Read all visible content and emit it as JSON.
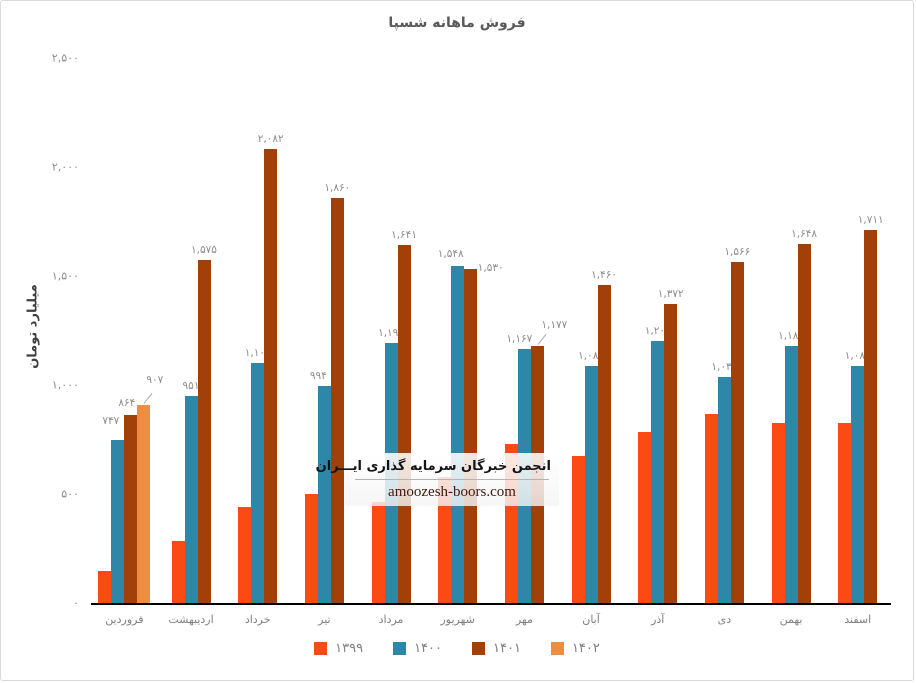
{
  "page": {
    "title": "فروش ماهانه شسپا"
  },
  "watermark": {
    "org_name": "انجمن خبرگان سرمایه گذاری ایـــران",
    "site_url": "amoozesh-boors.com"
  },
  "chart_data": {
    "type": "bar",
    "title": "فروش ماهانه شسپا",
    "xlabel": "",
    "ylabel": "میلیارد تومان",
    "ylim": [
      0,
      2500
    ],
    "grid": false,
    "legend_position": "bottom",
    "axis_line_color": "#000000",
    "tick_color": "#8c8c8c",
    "data_label_color": "#8c8c8c",
    "y_ticks": [
      {
        "value": 2500,
        "label": "۲,۵۰۰"
      },
      {
        "value": 2000,
        "label": "۲,۰۰۰"
      },
      {
        "value": 1500,
        "label": "۱,۵۰۰"
      },
      {
        "value": 1000,
        "label": "۱,۰۰۰"
      },
      {
        "value": 500,
        "label": "۵۰۰"
      },
      {
        "value": 0,
        "label": "۰"
      }
    ],
    "categories": [
      "فروردین",
      "اردیبهشت",
      "خرداد",
      "تیر",
      "مرداد",
      "شهریور",
      "مهر",
      "آبان",
      "آذر",
      "دی",
      "بهمن",
      "اسفند"
    ],
    "series": [
      {
        "name": "۱۳۹۹",
        "color": "#FC4A14",
        "values_are_estimates": true,
        "values": [
          148,
          284,
          440,
          498,
          462,
          580,
          730,
          675,
          785,
          868,
          828,
          827
        ],
        "labels": [
          null,
          null,
          null,
          null,
          null,
          null,
          null,
          null,
          null,
          null,
          null,
          null
        ]
      },
      {
        "name": "۱۴۰۰",
        "color": "#2E87A8",
        "values_are_estimates": false,
        "values": [
          747,
          951,
          1103,
          994,
          1192,
          1548,
          1167,
          1088,
          1200,
          1035,
          1180,
          1089
        ],
        "labels": [
          "۷۴۷",
          "۹۵۱",
          "۱,۱۰۳",
          "۹۹۴",
          "۱,۱۹۲",
          "۱,۵۴۸",
          "۱,۱۶۷",
          "۱,۰۸۸",
          "۱,۲۰۰",
          "۱,۰۳۵",
          "۱,۱۸۰",
          "۱,۰۸۹"
        ]
      },
      {
        "name": "۱۴۰۱",
        "color": "#A14009",
        "values_are_estimates": false,
        "values": [
          864,
          1575,
          2082,
          1860,
          1641,
          1530,
          1177,
          1460,
          1372,
          1566,
          1648,
          1711
        ],
        "labels": [
          "۸۶۴",
          "۱,۵۷۵",
          "۲,۰۸۲",
          "۱,۸۶۰",
          "۱,۶۴۱",
          "۱,۵۳۰",
          "۱,۱۷۷",
          "۱,۴۶۰",
          "۱,۳۷۲",
          "۱,۵۶۶",
          "۱,۶۴۸",
          "۱,۷۱۱"
        ]
      },
      {
        "name": "۱۴۰۲",
        "color": "#EE8C3F",
        "values_are_estimates": false,
        "values": [
          907,
          null,
          null,
          null,
          null,
          null,
          null,
          null,
          null,
          null,
          null,
          null
        ],
        "labels": [
          "۹۰۷",
          null,
          null,
          null,
          null,
          null,
          null,
          null,
          null,
          null,
          null,
          null
        ]
      }
    ],
    "label_layout": {
      "s1_m0": {
        "dx": -7,
        "dy": -9
      },
      "s2_m0": {
        "dx": -4,
        "dy": -2
      },
      "s3_m0": {
        "dx": 11,
        "dy": -15,
        "leader": true
      },
      "s1_m3": {
        "dx": -6,
        "dy": 0
      },
      "s1_m5": {
        "dx": -7,
        "dy": -2
      },
      "s2_m5": {
        "dx": 20,
        "dy": 9
      },
      "s1_m6": {
        "dx": -5,
        "dy": 0
      },
      "s2_m6": {
        "dx": 17,
        "dy": -11,
        "leader": true
      }
    }
  }
}
